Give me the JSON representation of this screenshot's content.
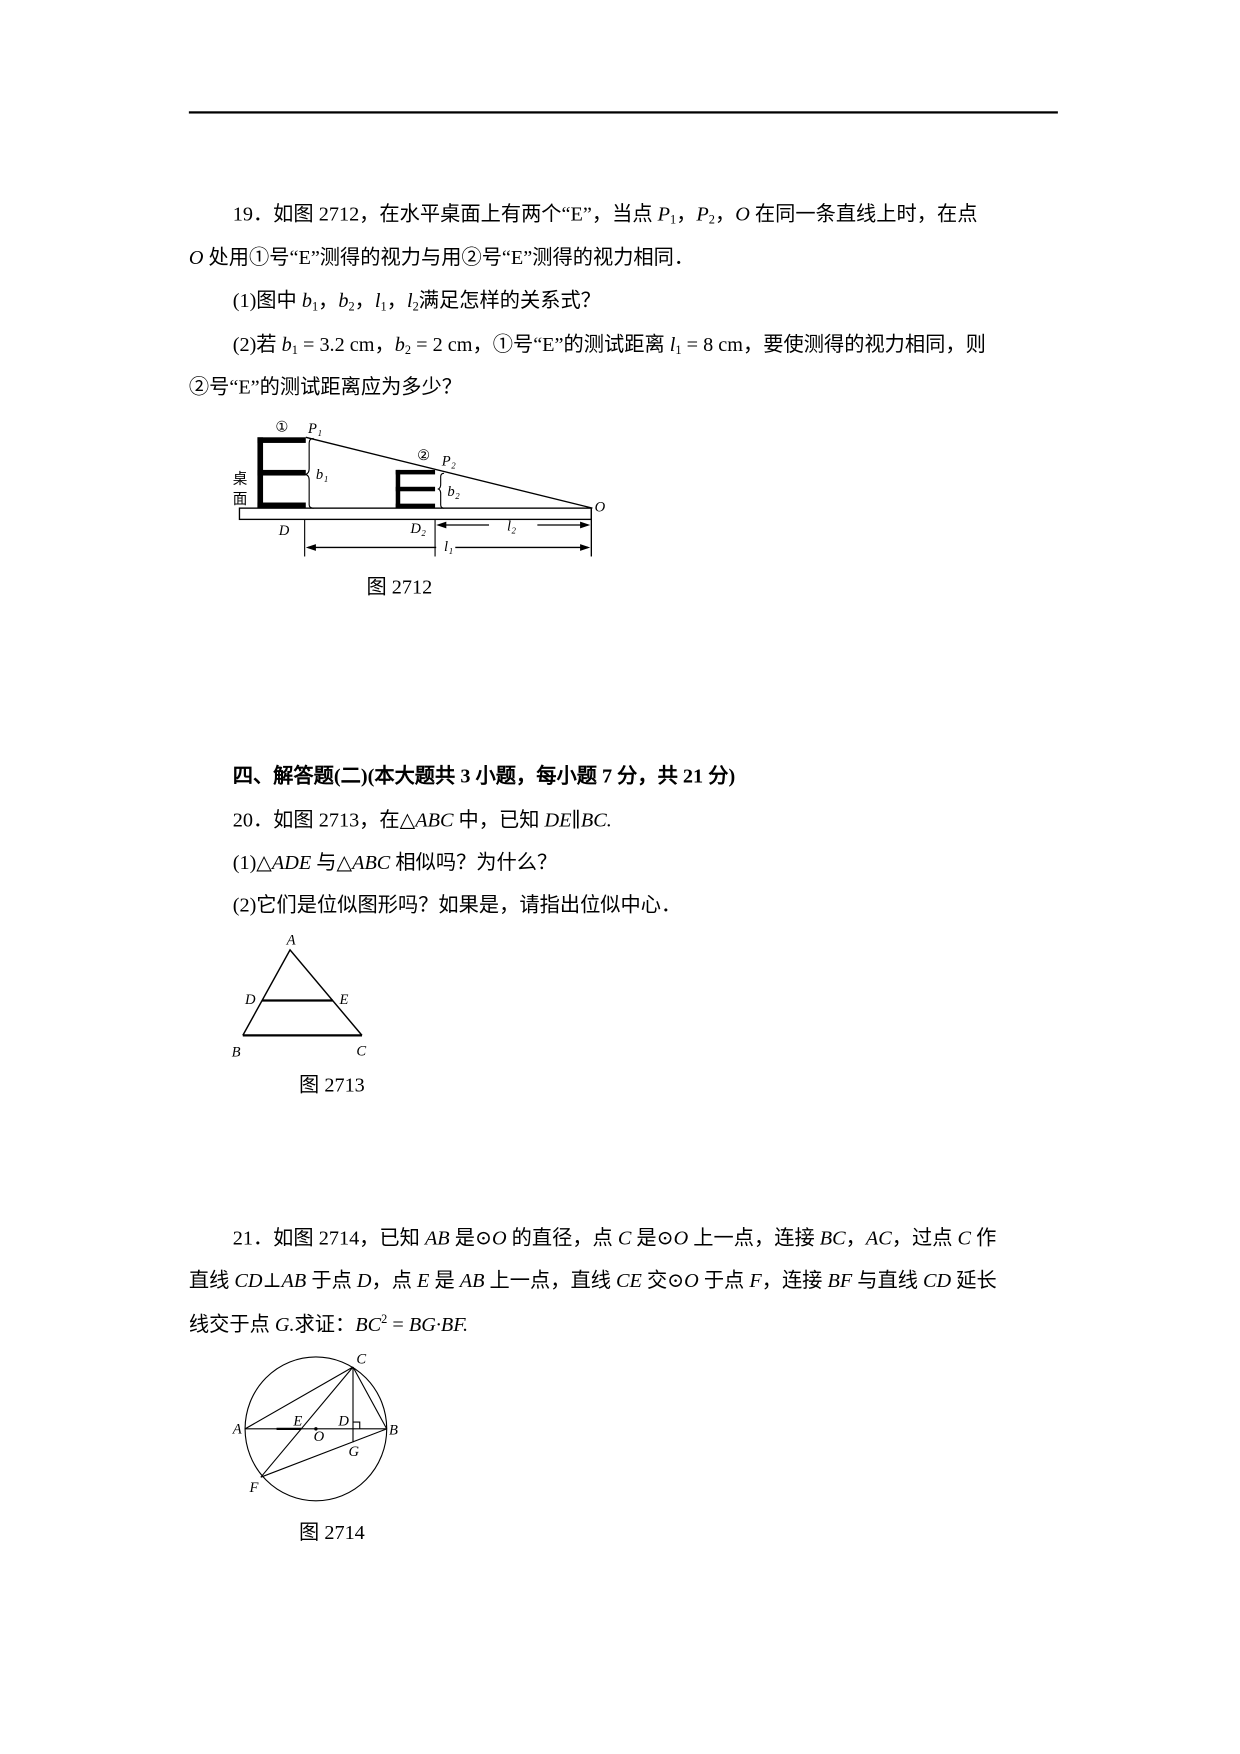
{
  "q19": {
    "lines": [
      [
        {
          "t": "19．如图 2712，在水平桌面上有两个“E”，当点 "
        },
        {
          "t": "P",
          "i": 1
        },
        {
          "sub": "1"
        },
        {
          "t": "，"
        },
        {
          "t": "P",
          "i": 1
        },
        {
          "sub": "2"
        },
        {
          "t": "，"
        },
        {
          "t": "O",
          "i": 1
        },
        {
          "t": " 在同一条直线上时，在点"
        }
      ],
      [
        {
          "t": "O",
          "i": 1
        },
        {
          "t": " 处用①号“E”测得的视力与用②号“E”测得的视力相同．"
        }
      ],
      [
        {
          "t": "(1)图中 "
        },
        {
          "t": "b",
          "i": 1
        },
        {
          "sub": "1"
        },
        {
          "t": "，"
        },
        {
          "t": "b",
          "i": 1
        },
        {
          "sub": "2"
        },
        {
          "t": "，"
        },
        {
          "t": "l",
          "i": 1
        },
        {
          "sub": "1"
        },
        {
          "t": "，"
        },
        {
          "t": "l",
          "i": 1
        },
        {
          "sub": "2"
        },
        {
          "t": "满足怎样的关系式？"
        }
      ],
      [
        {
          "t": "(2)若 "
        },
        {
          "t": "b",
          "i": 1
        },
        {
          "sub": "1"
        },
        {
          "t": " = 3.2 cm，"
        },
        {
          "t": "b",
          "i": 1
        },
        {
          "sub": "2"
        },
        {
          "t": " = 2 cm，①号“E”的测试距离 "
        },
        {
          "t": "l",
          "i": 1
        },
        {
          "sub": "1"
        },
        {
          "t": " = 8 cm，要使测得的视力相同，则"
        }
      ],
      [
        {
          "t": "②号“E”的测试距离应为多少？"
        }
      ]
    ],
    "figure": {
      "caption": "图 2712",
      "labels": {
        "circle1": "①",
        "circle2": "②",
        "P1": "P₁",
        "P2": "P₂",
        "O": "O",
        "D": "D",
        "D2": "D₂",
        "b1": "b₁",
        "b2": "b₂",
        "l1": "l₁",
        "l2": "l₂",
        "desk_1": "桌",
        "desk_2": "面"
      }
    }
  },
  "section4": {
    "heading": [
      {
        "t": "四、解答题(二)(本大题共 3 小题，每小题 7 分，共 21 分)"
      }
    ]
  },
  "q20": {
    "lines": [
      [
        {
          "t": "20．如图 2713，在△"
        },
        {
          "t": "ABC",
          "i": 1
        },
        {
          "t": " 中，已知 "
        },
        {
          "t": "DE",
          "i": 1
        },
        {
          "t": "∥"
        },
        {
          "t": "BC.",
          "i": 1
        }
      ],
      [
        {
          "t": "(1)△"
        },
        {
          "t": "ADE",
          "i": 1
        },
        {
          "t": " 与△"
        },
        {
          "t": "ABC",
          "i": 1
        },
        {
          "t": " 相似吗？为什么？"
        }
      ],
      [
        {
          "t": "(2)它们是位似图形吗？如果是，请指出位似中心．"
        }
      ]
    ],
    "figure": {
      "caption": "图 2713",
      "labels": {
        "A": "A",
        "B": "B",
        "C": "C",
        "D": "D",
        "E": "E"
      }
    }
  },
  "q21": {
    "lines": [
      [
        {
          "t": "21．如图 2714，已知 "
        },
        {
          "t": "AB",
          "i": 1
        },
        {
          "t": " 是⊙"
        },
        {
          "t": "O",
          "i": 1
        },
        {
          "t": " 的直径，点 "
        },
        {
          "t": "C",
          "i": 1
        },
        {
          "t": " 是⊙"
        },
        {
          "t": "O",
          "i": 1
        },
        {
          "t": " 上一点，连接 "
        },
        {
          "t": "BC",
          "i": 1
        },
        {
          "t": "，"
        },
        {
          "t": "AC",
          "i": 1
        },
        {
          "t": "，过点 "
        },
        {
          "t": "C",
          "i": 1
        },
        {
          "t": " 作"
        }
      ],
      [
        {
          "t": "直线 "
        },
        {
          "t": "CD",
          "i": 1
        },
        {
          "t": "⊥"
        },
        {
          "t": "AB",
          "i": 1
        },
        {
          "t": " 于点 "
        },
        {
          "t": "D",
          "i": 1
        },
        {
          "t": "，点 "
        },
        {
          "t": "E",
          "i": 1
        },
        {
          "t": " 是 "
        },
        {
          "t": "AB",
          "i": 1
        },
        {
          "t": " 上一点，直线 "
        },
        {
          "t": "CE",
          "i": 1
        },
        {
          "t": " 交⊙"
        },
        {
          "t": "O",
          "i": 1
        },
        {
          "t": " 于点 "
        },
        {
          "t": "F",
          "i": 1
        },
        {
          "t": "，连接 "
        },
        {
          "t": "BF",
          "i": 1
        },
        {
          "t": " 与直线 "
        },
        {
          "t": "CD",
          "i": 1
        },
        {
          "t": " 延长"
        }
      ],
      [
        {
          "t": "线交于点 "
        },
        {
          "t": "G.",
          "i": 1
        },
        {
          "t": "求证："
        },
        {
          "t": "BC",
          "i": 1
        },
        {
          "sup": "2"
        },
        {
          "t": " = "
        },
        {
          "t": "BG·BF.",
          "i": 1
        }
      ]
    ],
    "figure": {
      "caption": "图 2714",
      "labels": {
        "A": "A",
        "B": "B",
        "C": "C",
        "D": "D",
        "E": "E",
        "F": "F",
        "G": "G",
        "O": "O"
      }
    }
  }
}
